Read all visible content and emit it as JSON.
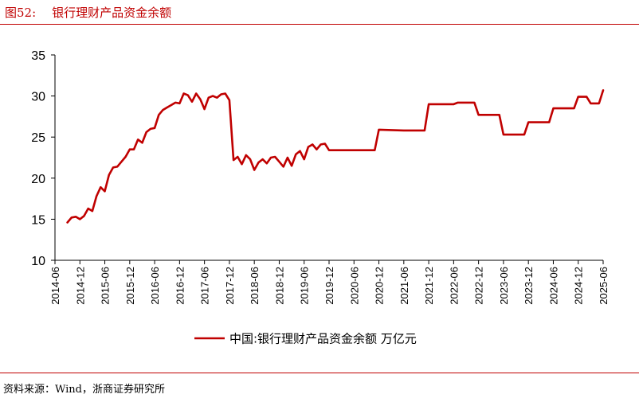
{
  "figure": {
    "number": "图52:",
    "title": "银行理财产品资金余额"
  },
  "source": "资料来源：Wind，浙商证券研究所",
  "chart_data": {
    "type": "line",
    "title": "",
    "xlabel": "",
    "ylabel": "",
    "ylim": [
      10,
      35
    ],
    "yticks": [
      "10",
      "15",
      "20",
      "25",
      "30",
      "35"
    ],
    "xticks": [
      "2014-06",
      "2014-12",
      "2015-06",
      "2015-12",
      "2016-06",
      "2016-12",
      "2017-06",
      "2017-12",
      "2018-06",
      "2018-12",
      "2019-06",
      "2019-12",
      "2020-06",
      "2020-12",
      "2021-06",
      "2021-12",
      "2022-06",
      "2022-12",
      "2023-06",
      "2023-12",
      "2024-06",
      "2024-12",
      "2025-06"
    ],
    "legend_position": "bottom-center",
    "grid": false,
    "series": [
      {
        "name": "中国:银行理财产品资金余额 万亿元",
        "color": "#c00000",
        "points": [
          [
            "2014-09",
            14.6
          ],
          [
            "2014-10",
            15.2
          ],
          [
            "2014-11",
            15.3
          ],
          [
            "2014-12",
            15.0
          ],
          [
            "2015-01",
            15.4
          ],
          [
            "2015-02",
            16.3
          ],
          [
            "2015-03",
            16.0
          ],
          [
            "2015-04",
            17.8
          ],
          [
            "2015-05",
            18.9
          ],
          [
            "2015-06",
            18.4
          ],
          [
            "2015-07",
            20.4
          ],
          [
            "2015-08",
            21.3
          ],
          [
            "2015-09",
            21.4
          ],
          [
            "2015-10",
            22.0
          ],
          [
            "2015-11",
            22.6
          ],
          [
            "2015-12",
            23.5
          ],
          [
            "2016-01",
            23.5
          ],
          [
            "2016-02",
            24.7
          ],
          [
            "2016-03",
            24.3
          ],
          [
            "2016-04",
            25.6
          ],
          [
            "2016-05",
            26.0
          ],
          [
            "2016-06",
            26.1
          ],
          [
            "2016-07",
            27.7
          ],
          [
            "2016-08",
            28.3
          ],
          [
            "2016-09",
            28.6
          ],
          [
            "2016-10",
            28.9
          ],
          [
            "2016-11",
            29.2
          ],
          [
            "2016-12",
            29.1
          ],
          [
            "2017-01",
            30.3
          ],
          [
            "2017-02",
            30.1
          ],
          [
            "2017-03",
            29.3
          ],
          [
            "2017-04",
            30.3
          ],
          [
            "2017-05",
            29.6
          ],
          [
            "2017-06",
            28.4
          ],
          [
            "2017-07",
            29.8
          ],
          [
            "2017-08",
            30.0
          ],
          [
            "2017-09",
            29.8
          ],
          [
            "2017-10",
            30.2
          ],
          [
            "2017-11",
            30.3
          ],
          [
            "2017-12",
            29.5
          ],
          [
            "2018-01",
            22.2
          ],
          [
            "2018-02",
            22.6
          ],
          [
            "2018-03",
            21.7
          ],
          [
            "2018-04",
            22.8
          ],
          [
            "2018-05",
            22.3
          ],
          [
            "2018-06",
            21.0
          ],
          [
            "2018-07",
            21.9
          ],
          [
            "2018-08",
            22.3
          ],
          [
            "2018-09",
            21.8
          ],
          [
            "2018-10",
            22.5
          ],
          [
            "2018-11",
            22.6
          ],
          [
            "2018-12",
            22.0
          ],
          [
            "2019-01",
            21.4
          ],
          [
            "2019-02",
            22.5
          ],
          [
            "2019-03",
            21.5
          ],
          [
            "2019-04",
            22.9
          ],
          [
            "2019-05",
            23.3
          ],
          [
            "2019-06",
            22.3
          ],
          [
            "2019-07",
            23.8
          ],
          [
            "2019-08",
            24.1
          ],
          [
            "2019-09",
            23.5
          ],
          [
            "2019-10",
            24.1
          ],
          [
            "2019-11",
            24.2
          ],
          [
            "2019-12",
            23.4
          ],
          [
            "2020-06",
            23.4
          ],
          [
            "2020-11",
            23.4
          ],
          [
            "2020-12",
            25.9
          ],
          [
            "2021-06",
            25.8
          ],
          [
            "2021-11",
            25.8
          ],
          [
            "2021-12",
            29.0
          ],
          [
            "2022-06",
            29.0
          ],
          [
            "2022-07",
            29.2
          ],
          [
            "2022-11",
            29.2
          ],
          [
            "2022-12",
            27.7
          ],
          [
            "2023-05",
            27.7
          ],
          [
            "2023-06",
            25.3
          ],
          [
            "2023-11",
            25.3
          ],
          [
            "2023-12",
            26.8
          ],
          [
            "2024-05",
            26.8
          ],
          [
            "2024-06",
            28.5
          ],
          [
            "2024-11",
            28.5
          ],
          [
            "2024-12",
            29.9
          ],
          [
            "2025-02",
            29.9
          ],
          [
            "2025-03",
            29.1
          ],
          [
            "2025-05",
            29.1
          ],
          [
            "2025-06",
            30.7
          ]
        ]
      }
    ]
  }
}
